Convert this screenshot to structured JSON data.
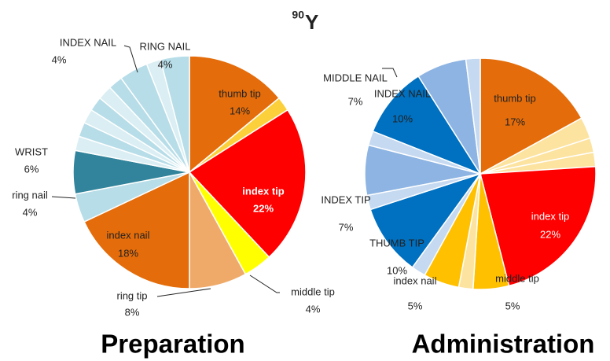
{
  "chart_data": {
    "title_superscript": "90",
    "title": "Y",
    "charts": [
      {
        "type": "pie",
        "title": "Preparation",
        "categories": [
          "thumb tip",
          null,
          "index tip",
          "middle tip",
          "ring tip",
          "index nail",
          "ring nail",
          "WRIST",
          null,
          null,
          null,
          null,
          null,
          null,
          "INDEX NAIL",
          null,
          "RING NAIL"
        ],
        "values": [
          14,
          2,
          22,
          4,
          8,
          18,
          4,
          6,
          2,
          2,
          2,
          2,
          2,
          2,
          4,
          2,
          4
        ],
        "value_labels": [
          "14%",
          null,
          "22%",
          "4%",
          "8%",
          "18%",
          "4%",
          "6%",
          null,
          null,
          null,
          null,
          null,
          null,
          "4%",
          null,
          "4%"
        ],
        "colors": [
          "#e46c0a",
          "#fcd03a",
          "#ff0000",
          "#ffff00",
          "#efaa6a",
          "#e46c0a",
          "#b7dde8",
          "#31849b",
          "#daeef3",
          "#b7dde8",
          "#daeef3",
          "#b7dde8",
          "#daeef3",
          "#b7dde8",
          "#b7dde8",
          "#daeef3",
          "#b7dde8"
        ]
      },
      {
        "type": "pie",
        "title": "Administration",
        "categories": [
          "thumb tip",
          null,
          null,
          null,
          "index tip",
          "middle tip",
          null,
          "index nail",
          null,
          "THUMB TIP",
          null,
          "INDEX TIP",
          null,
          "INDEX NAIL",
          "MIDDLE NAIL",
          null
        ],
        "values": [
          17,
          3,
          2,
          2,
          22,
          5,
          2,
          5,
          2,
          10,
          2,
          7,
          2,
          10,
          7,
          2
        ],
        "value_labels": [
          "17%",
          null,
          null,
          null,
          "22%",
          "5%",
          null,
          "5%",
          null,
          "10%",
          null,
          "7%",
          null,
          "10%",
          "7%",
          null
        ],
        "colors": [
          "#e46c0a",
          "#fce3a0",
          "#fce3a0",
          "#fce3a0",
          "#ff0000",
          "#ffc000",
          "#fce3a0",
          "#ffc000",
          "#c5d9f1",
          "#0070c0",
          "#c5d9f1",
          "#8db4e2",
          "#c5d9f1",
          "#0070c0",
          "#8db4e2",
          "#c5d9f1"
        ]
      }
    ]
  }
}
